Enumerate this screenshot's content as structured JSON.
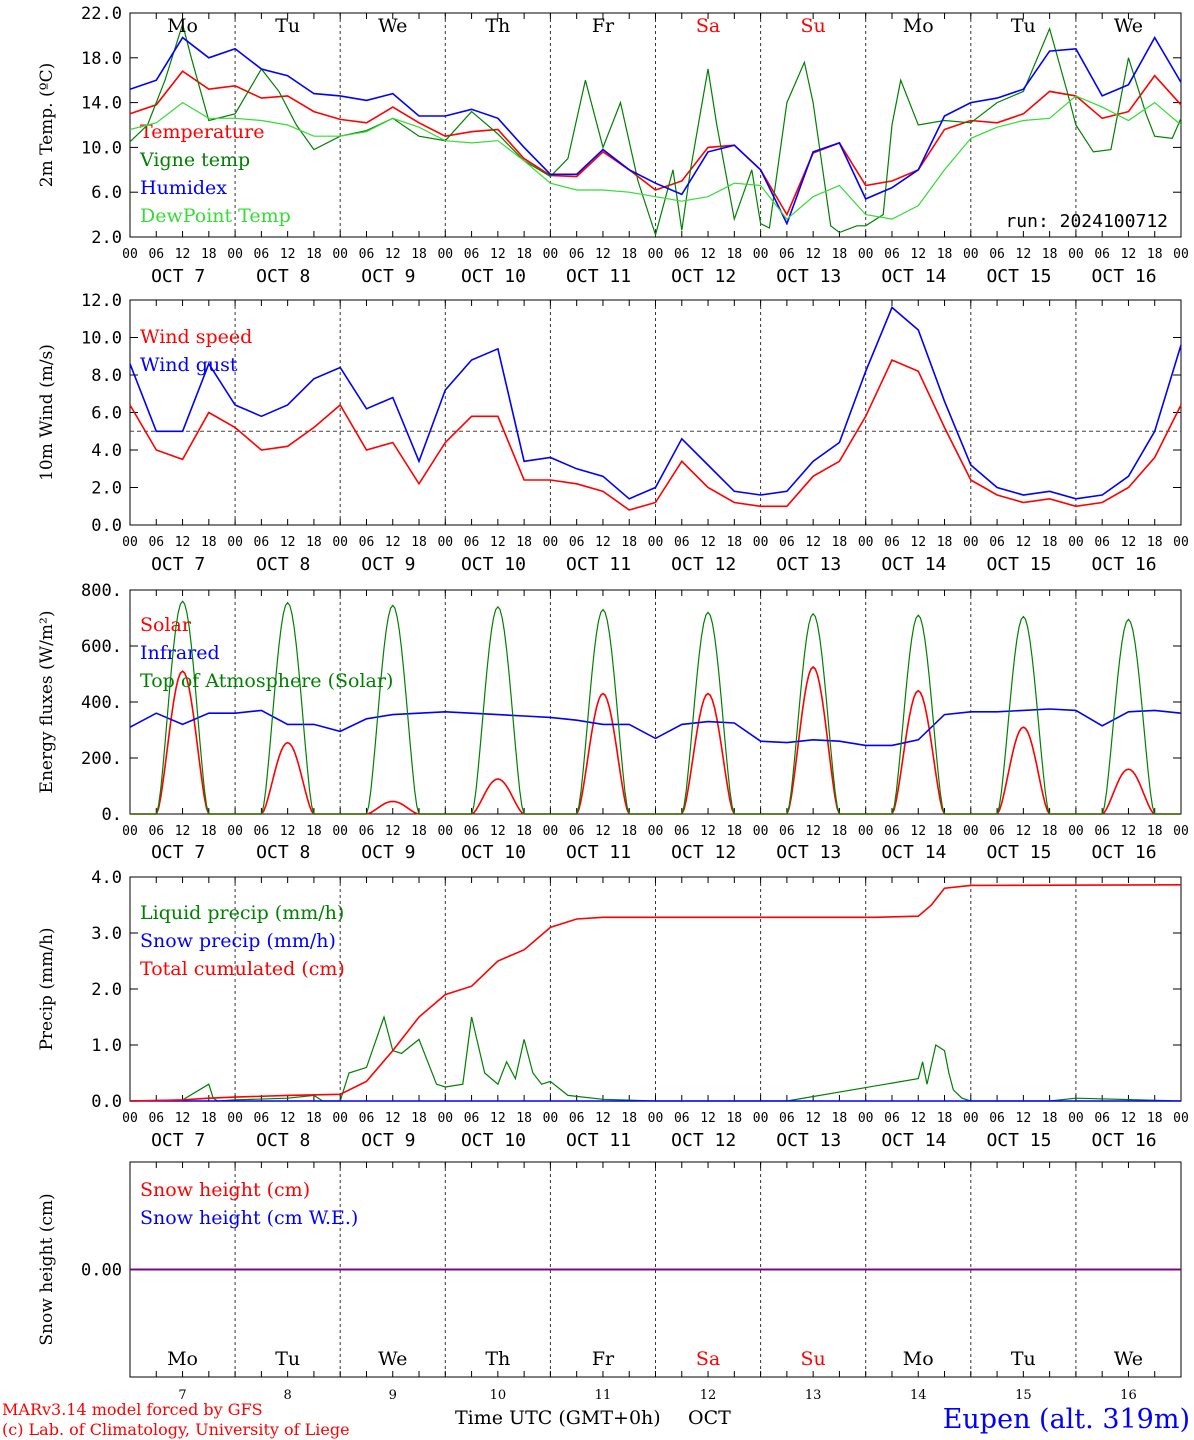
{
  "colors": {
    "red": "#ff0000",
    "blue": "#0000ff",
    "green": "#008000",
    "lightgreen": "#33dd33",
    "purple": "#800080"
  },
  "days": {
    "names": [
      "Mo",
      "Tu",
      "We",
      "Th",
      "Fr",
      "Sa",
      "Su",
      "Mo",
      "Tu",
      "We"
    ],
    "weekend": [
      false,
      false,
      false,
      false,
      false,
      true,
      true,
      false,
      false,
      false
    ],
    "dates": [
      "OCT  7",
      "OCT  8",
      "OCT  9",
      "OCT 10",
      "OCT 11",
      "OCT 12",
      "OCT 13",
      "OCT 14",
      "OCT 15",
      "OCT 16"
    ],
    "nums": [
      "7",
      "8",
      "9",
      "10",
      "11",
      "12",
      "13",
      "14",
      "15",
      "16"
    ],
    "hours": [
      "00",
      "06",
      "12",
      "18"
    ],
    "last_hour": "00"
  },
  "run_label": "run: 2024100712",
  "footer": {
    "line1": "MARv3.14 model forced by GFS",
    "line2": "(c) Lab. of Climatology, University of Liege",
    "xlabel": "Time UTC (GMT+0h)",
    "month": "OCT",
    "station": "Eupen (alt. 319m)"
  },
  "chart_data": [
    {
      "type": "line",
      "ylabel": "2m Temp. (ºC)",
      "ylim": [
        2,
        22
      ],
      "yticks": [
        "2.0",
        "6.0",
        "10.0",
        "14.0",
        "18.0",
        "22.0"
      ],
      "x_unit": "hours since OCT 7 00 UTC",
      "xlim": [
        0,
        240
      ],
      "grid": "dashed vertical day separators",
      "legend_position": "left",
      "series": [
        {
          "name": "Temperature",
          "color": "red",
          "x": [
            0,
            6,
            12,
            18,
            24,
            30,
            36,
            42,
            48,
            54,
            60,
            66,
            72,
            78,
            84,
            90,
            96,
            102,
            108,
            114,
            120,
            126,
            132,
            138,
            144,
            150,
            156,
            162,
            168,
            174,
            180,
            186,
            192,
            198,
            204,
            210,
            216,
            222,
            228,
            234,
            240
          ],
          "y": [
            13,
            13.8,
            16.8,
            15.2,
            15.5,
            14.4,
            14.6,
            13.2,
            12.5,
            12.2,
            13.6,
            12.2,
            11,
            11.4,
            11.6,
            9,
            7.5,
            7.4,
            9.6,
            8,
            6.2,
            7,
            10,
            10.2,
            8,
            4,
            9.5,
            10.4,
            6.6,
            7,
            8,
            11.6,
            12.4,
            12.2,
            13,
            15,
            14.6,
            12.6,
            13.2,
            16.4,
            13.8
          ]
        },
        {
          "name": "Vigne temp",
          "color": "green",
          "x": [
            0,
            4,
            8,
            12,
            14,
            18,
            24,
            30,
            34,
            38,
            42,
            48,
            54,
            60,
            66,
            72,
            78,
            84,
            90,
            96,
            100,
            104,
            108,
            112,
            116,
            120,
            124,
            126,
            128,
            132,
            134,
            138,
            142,
            144,
            146,
            150,
            154,
            156,
            160,
            162,
            166,
            168,
            172,
            174,
            176,
            180,
            186,
            192,
            198,
            204,
            210,
            214,
            216,
            220,
            224,
            228,
            232,
            234,
            238,
            240
          ],
          "y": [
            10.5,
            12,
            16,
            21,
            18,
            12.4,
            13,
            17,
            15,
            12,
            9.8,
            11,
            11.5,
            12.6,
            11,
            10.6,
            13.2,
            11.2,
            8.8,
            7.4,
            9,
            16,
            10,
            14,
            7,
            2.2,
            8,
            2.6,
            8,
            17,
            12,
            3.6,
            8,
            3.2,
            2.8,
            14,
            17.6,
            14,
            3,
            2.4,
            3,
            3,
            4,
            12,
            16,
            12,
            12.4,
            12.2,
            14,
            15,
            20.6,
            15,
            12,
            9.6,
            9.8,
            18,
            13,
            11,
            10.8,
            12.6
          ]
        },
        {
          "name": "Humidex",
          "color": "blue",
          "x": [
            0,
            6,
            12,
            18,
            24,
            30,
            36,
            42,
            48,
            54,
            60,
            66,
            72,
            78,
            84,
            90,
            96,
            102,
            108,
            114,
            120,
            126,
            132,
            138,
            144,
            150,
            156,
            162,
            168,
            174,
            180,
            186,
            192,
            198,
            204,
            210,
            216,
            222,
            228,
            234,
            240
          ],
          "y": [
            15.2,
            16,
            19.8,
            18,
            18.8,
            17,
            16.4,
            14.8,
            14.6,
            14.2,
            14.8,
            12.8,
            12.8,
            13.4,
            12.6,
            10,
            7.6,
            7.6,
            9.8,
            8,
            6.8,
            5.8,
            9.6,
            10.2,
            8,
            3.2,
            9.6,
            10.4,
            5.4,
            6.4,
            8,
            12.8,
            14,
            14.4,
            15.2,
            18.6,
            18.8,
            14.6,
            15.6,
            19.8,
            15.8
          ]
        },
        {
          "name": "DewPoint Temp",
          "color": "lightgreen",
          "x": [
            0,
            6,
            12,
            18,
            24,
            30,
            36,
            42,
            48,
            54,
            60,
            66,
            72,
            78,
            84,
            90,
            96,
            102,
            108,
            114,
            120,
            126,
            132,
            138,
            144,
            150,
            156,
            162,
            168,
            174,
            180,
            186,
            192,
            198,
            204,
            210,
            216,
            222,
            228,
            234,
            240
          ],
          "y": [
            11.6,
            12.2,
            14,
            12.6,
            12.6,
            12.4,
            12,
            11,
            11,
            11.4,
            12.6,
            11.8,
            10.6,
            10.4,
            10.6,
            8.8,
            6.8,
            6.2,
            6.2,
            6,
            5.6,
            5.2,
            5.6,
            6.8,
            6.6,
            3.6,
            5.6,
            6.6,
            4,
            3.6,
            4.8,
            8,
            10.8,
            11.8,
            12.4,
            12.6,
            14.6,
            13.6,
            12.4,
            14,
            12
          ]
        }
      ]
    },
    {
      "type": "line",
      "ylabel": "10m Wind (m/s)",
      "ylim": [
        0,
        12
      ],
      "yticks": [
        "0.0",
        "2.0",
        "4.0",
        "6.0",
        "8.0",
        "10.0",
        "12.0"
      ],
      "reference_line": 5,
      "x_unit": "hours since OCT 7 00 UTC",
      "xlim": [
        0,
        240
      ],
      "legend_position": "left",
      "series": [
        {
          "name": "Wind speed",
          "color": "red",
          "x": [
            0,
            6,
            12,
            18,
            24,
            30,
            36,
            42,
            48,
            54,
            60,
            66,
            72,
            78,
            84,
            90,
            96,
            102,
            108,
            114,
            120,
            126,
            132,
            138,
            144,
            150,
            156,
            162,
            168,
            174,
            180,
            186,
            192,
            198,
            204,
            210,
            216,
            222,
            228,
            234,
            240
          ],
          "y": [
            6.4,
            4,
            3.5,
            6,
            5.2,
            4,
            4.2,
            5.2,
            6.4,
            4,
            4.4,
            2.2,
            4.4,
            5.8,
            5.8,
            2.4,
            2.4,
            2.2,
            1.8,
            0.8,
            1.2,
            3.4,
            2,
            1.2,
            1,
            1,
            2.6,
            3.4,
            5.8,
            8.8,
            8.2,
            5.2,
            2.4,
            1.6,
            1.2,
            1.4,
            1,
            1.2,
            2,
            3.6,
            6.4
          ]
        },
        {
          "name": "Wind gust",
          "color": "blue",
          "x": [
            0,
            6,
            12,
            18,
            24,
            30,
            36,
            42,
            48,
            54,
            60,
            66,
            72,
            78,
            84,
            90,
            96,
            102,
            108,
            114,
            120,
            126,
            132,
            138,
            144,
            150,
            156,
            162,
            168,
            174,
            180,
            186,
            192,
            198,
            204,
            210,
            216,
            222,
            228,
            234,
            240
          ],
          "y": [
            8.6,
            5,
            5,
            8.6,
            6.4,
            5.8,
            6.4,
            7.8,
            8.4,
            6.2,
            6.8,
            3.4,
            7.2,
            8.8,
            9.4,
            3.4,
            3.6,
            3,
            2.6,
            1.4,
            2,
            4.6,
            3.2,
            1.8,
            1.6,
            1.8,
            3.4,
            4.4,
            8.2,
            11.6,
            10.4,
            6.6,
            3.2,
            2,
            1.6,
            1.8,
            1.4,
            1.6,
            2.6,
            5,
            9.6
          ]
        }
      ]
    },
    {
      "type": "line",
      "ylabel": "Energy fluxes (W/m²)",
      "ylim": [
        0,
        800
      ],
      "yticks": [
        "0.",
        "200.",
        "400.",
        "600.",
        "800."
      ],
      "x_unit": "hours since OCT 7 00 UTC",
      "xlim": [
        0,
        240
      ],
      "legend_position": "left",
      "daily_peak_hour": 12,
      "daily_day_length_hours": 12,
      "series": [
        {
          "name": "Solar",
          "color": "red",
          "daily_peak": [
            510,
            255,
            45,
            125,
            430,
            430,
            525,
            440,
            310,
            160
          ]
        },
        {
          "name": "Infrared",
          "color": "blue",
          "x": [
            0,
            6,
            12,
            18,
            24,
            30,
            36,
            42,
            48,
            54,
            60,
            66,
            72,
            78,
            84,
            90,
            96,
            102,
            108,
            114,
            120,
            126,
            132,
            138,
            144,
            150,
            156,
            162,
            168,
            174,
            180,
            186,
            192,
            198,
            204,
            210,
            216,
            222,
            228,
            234,
            240
          ],
          "y": [
            310,
            360,
            320,
            360,
            360,
            370,
            320,
            320,
            295,
            340,
            355,
            360,
            365,
            360,
            355,
            350,
            345,
            335,
            320,
            320,
            270,
            320,
            330,
            325,
            260,
            255,
            265,
            260,
            245,
            245,
            265,
            355,
            365,
            365,
            370,
            375,
            370,
            315,
            365,
            370,
            360
          ]
        },
        {
          "name": "Top of Atmosphere (Solar)",
          "color": "green",
          "daily_peak": [
            760,
            755,
            745,
            740,
            730,
            720,
            715,
            710,
            705,
            695
          ]
        }
      ]
    },
    {
      "type": "line",
      "ylabel": "Precip (mm/h)",
      "ylim": [
        0,
        4
      ],
      "yticks": [
        "0.0",
        "1.0",
        "2.0",
        "3.0",
        "4.0"
      ],
      "x_unit": "hours since OCT 7 00 UTC",
      "xlim": [
        0,
        240
      ],
      "legend_position": "left",
      "series": [
        {
          "name": "Liquid precip (mm/h)",
          "color": "green",
          "x": [
            0,
            12,
            18,
            19,
            20,
            24,
            36,
            42,
            44,
            48,
            50,
            54,
            58,
            60,
            62,
            66,
            70,
            72,
            76,
            78,
            81,
            84,
            86,
            88,
            90,
            92,
            94,
            96,
            100,
            108,
            120,
            150,
            180,
            181,
            182,
            184,
            186,
            187,
            188,
            190,
            192,
            200,
            210,
            216,
            240
          ],
          "y": [
            0,
            0.02,
            0.3,
            0.05,
            0,
            0.02,
            0.05,
            0.1,
            0,
            0,
            0.5,
            0.6,
            1.5,
            0.9,
            0.85,
            1.1,
            0.3,
            0.25,
            0.3,
            1.5,
            0.5,
            0.3,
            0.7,
            0.4,
            1.1,
            0.5,
            0.3,
            0.35,
            0.1,
            0.03,
            0,
            0,
            0.4,
            0.7,
            0.3,
            1,
            0.9,
            0.5,
            0.2,
            0.05,
            0,
            0,
            0,
            0.05,
            0
          ]
        },
        {
          "name": "Snow precip (mm/h)",
          "color": "blue",
          "x": [
            0,
            240
          ],
          "y": [
            0,
            0
          ]
        },
        {
          "name": "Total cumulated (cm)",
          "color": "red",
          "x": [
            0,
            12,
            18,
            24,
            36,
            48,
            54,
            60,
            66,
            72,
            78,
            84,
            90,
            96,
            102,
            108,
            120,
            150,
            170,
            180,
            183,
            186,
            192,
            240
          ],
          "y": [
            0,
            0.02,
            0.05,
            0.07,
            0.1,
            0.12,
            0.35,
            0.9,
            1.5,
            1.9,
            2.05,
            2.5,
            2.7,
            3.1,
            3.25,
            3.28,
            3.28,
            3.28,
            3.28,
            3.3,
            3.5,
            3.8,
            3.85,
            3.86
          ]
        }
      ]
    },
    {
      "type": "line",
      "ylabel": "Snow height (cm)",
      "ylim": [
        -0.1,
        0.1
      ],
      "yticks": [
        "0.00"
      ],
      "x_unit": "hours since OCT 7 00 UTC",
      "xlim": [
        0,
        240
      ],
      "legend_position": "left",
      "series": [
        {
          "name": "Snow height (cm)",
          "color": "red",
          "x": [
            0,
            240
          ],
          "y": [
            0,
            0
          ]
        },
        {
          "name": "Snow height (cm W.E.)",
          "color": "blue",
          "x": [
            0,
            240
          ],
          "y": [
            0,
            0
          ]
        }
      ]
    }
  ]
}
